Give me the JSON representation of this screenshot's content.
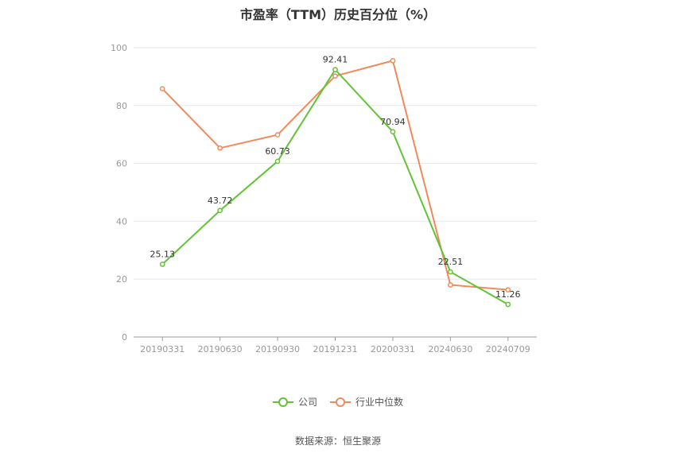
{
  "chart_data": {
    "type": "line",
    "title": "市盈率（TTM）历史百分位（%）",
    "categories": [
      "20190331",
      "20190630",
      "20190930",
      "20191231",
      "20200331",
      "20240630",
      "20240709"
    ],
    "series": [
      {
        "name": "公司",
        "color": "#62c335",
        "values": [
          25.13,
          43.72,
          60.73,
          92.41,
          70.94,
          22.51,
          11.26
        ],
        "show_labels": true
      },
      {
        "name": "行业中位数",
        "color": "#f08a5d",
        "values": [
          85.8,
          65.3,
          69.9,
          90.2,
          95.5,
          18.0,
          16.3
        ],
        "show_labels": false
      }
    ],
    "ylim": [
      0,
      100
    ],
    "yticks": [
      0,
      20,
      40,
      60,
      80,
      100
    ],
    "grid": true,
    "legend": "bottom-center"
  },
  "source_text": "数据来源：恒生聚源"
}
